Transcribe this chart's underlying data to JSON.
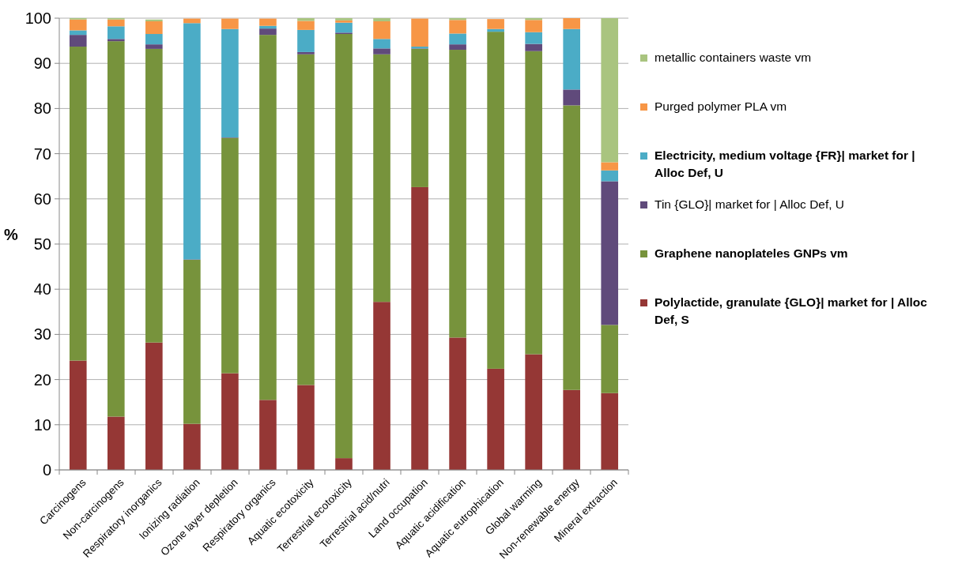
{
  "chart_data": {
    "type": "bar",
    "stacked": true,
    "ylabel": "%",
    "categories": [
      "Carcinogens",
      "Non-carcinogens",
      "Respiratory inorganics",
      "Ionizing radiation",
      "Ozone layer depletion",
      "Respiratory organics",
      "Aquatic ecotoxicity",
      "Terrestrial ecotoxicity",
      "Terrestrial acid/nutri",
      "Land occupation",
      "Aquatic acidification",
      "Aquatic eutrophication",
      "Global warming",
      "Non-renewable energy",
      "Mineral extraction"
    ],
    "series": [
      {
        "name": "Polylactide, granulate {GLO}| market for | Alloc Def, S",
        "color": "#953735",
        "values": [
          24.2,
          11.8,
          28.2,
          10.2,
          21.4,
          15.5,
          18.8,
          2.6,
          37.2,
          62.6,
          29.3,
          22.4,
          25.6,
          17.7,
          17.0
        ]
      },
      {
        "name": "Graphene nanoplateles GNPs vm",
        "color": "#77933c",
        "values": [
          69.5,
          83.1,
          65.0,
          36.3,
          52.1,
          80.8,
          73.2,
          93.9,
          54.8,
          30.6,
          63.7,
          74.6,
          67.1,
          63.0,
          15.1
        ]
      },
      {
        "name": "Tin {GLO}| market for | Alloc Def, U",
        "color": "#604a7b",
        "values": [
          2.6,
          0.5,
          1.0,
          0.1,
          0.1,
          1.4,
          0.5,
          0.3,
          1.3,
          0.1,
          1.2,
          null,
          1.6,
          3.5,
          31.8
        ]
      },
      {
        "name": "Electricity, medium voltage {FR}| market for | Alloc Def, U",
        "color": "#4bacc6",
        "values": [
          1.0,
          2.8,
          2.3,
          52.3,
          24.0,
          0.6,
          4.9,
          2.2,
          2.1,
          0.4,
          2.4,
          0.6,
          2.6,
          13.4,
          2.4
        ]
      },
      {
        "name": "Purged polymer PLA vm",
        "color": "#f79646",
        "values": [
          2.4,
          1.5,
          2.8,
          1.0,
          2.3,
          1.6,
          2.0,
          0.5,
          3.9,
          6.2,
          3.0,
          2.2,
          2.7,
          2.4,
          1.8
        ]
      },
      {
        "name": "metallic containers waste vm",
        "color": "#a9c47f",
        "values": [
          0.3,
          0.3,
          0.4,
          null,
          null,
          null,
          0.6,
          0.5,
          0.7,
          null,
          0.4,
          null,
          0.4,
          0.0,
          31.9
        ]
      }
    ],
    "ylim": [
      0,
      100
    ],
    "yticks": [
      0,
      10,
      20,
      30,
      40,
      50,
      60,
      70,
      80,
      90,
      100
    ],
    "grid": "y",
    "legend": "right"
  }
}
